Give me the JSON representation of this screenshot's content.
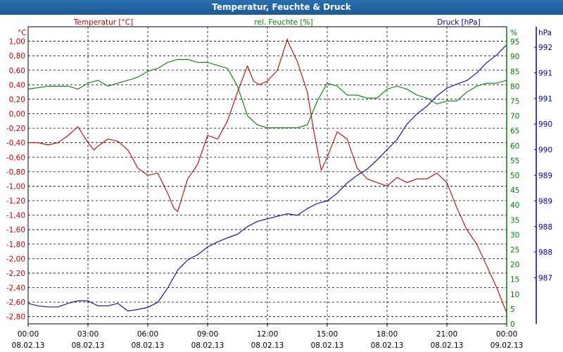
{
  "window": {
    "title": "Temperatur, Feuchte & Druck"
  },
  "colors": {
    "temp": "#c00000",
    "hum": "#008000",
    "press": "#0000a0",
    "grid": "#000000",
    "title_bg": "#1d5a96"
  },
  "chart_data": {
    "type": "line",
    "title": "Temperatur, Feuchte & Druck",
    "x": [
      "00:00",
      "03:00",
      "06:00",
      "09:00",
      "12:00",
      "15:00",
      "18:00",
      "21:00",
      "00:00"
    ],
    "x_dates": [
      "08.02.13",
      "08.02.13",
      "08.02.13",
      "08.02.13",
      "08.02.13",
      "08.02.13",
      "08.02.13",
      "08.02.13",
      "09.02.13"
    ],
    "xlim_hours": [
      0,
      24
    ],
    "axes": {
      "temp": {
        "label": "Temperatur [°C]",
        "unit": "°C",
        "ylim": [
          -2.9,
          1.2
        ],
        "ticks": [
          "1,00",
          "0,80",
          "0,60",
          "0,40",
          "0,20",
          "0,00",
          "-0,20",
          "-0,40",
          "-0,60",
          "-0,80",
          "-1,00",
          "-1,20",
          "-1,40",
          "-1,60",
          "-1,80",
          "-2,00",
          "-2,20",
          "-2,40",
          "-2,60",
          "-2,80"
        ]
      },
      "hum": {
        "label": "rel. Feuchte [%]",
        "unit": "%",
        "ylim": [
          0,
          100
        ],
        "ticks": [
          "95",
          "90",
          "85",
          "80",
          "75",
          "70",
          "65",
          "60",
          "55",
          "50",
          "45",
          "40",
          "35",
          "30",
          "25",
          "20",
          "15",
          "10",
          "5",
          "0"
        ]
      },
      "press": {
        "label": "Druck [hPa]",
        "unit": "hPa",
        "ylim": [
          986.6,
          992.4
        ],
        "ticks": [
          "992",
          "991",
          "991",
          "990",
          "990",
          "989",
          "989",
          "988",
          "988",
          "987"
        ]
      }
    },
    "series": [
      {
        "name": "Temperatur",
        "axis": "temp",
        "x": [
          0,
          0.5,
          1,
          1.5,
          2,
          2.5,
          3,
          3.3,
          3.5,
          4,
          4.5,
          5,
          5.5,
          6,
          6.5,
          7,
          7.3,
          7.5,
          8,
          8.5,
          9,
          9.5,
          10,
          10.5,
          11,
          11.3,
          11.6,
          12,
          12.5,
          13,
          13.1,
          13.5,
          14,
          14.3,
          14.7,
          15,
          15.5,
          16,
          16.5,
          17,
          17.5,
          18,
          18.5,
          19,
          19.5,
          20,
          20.5,
          21,
          21.5,
          22,
          22.5,
          23,
          23.5,
          24
        ],
        "values": [
          -0.4,
          -0.4,
          -0.43,
          -0.4,
          -0.3,
          -0.18,
          -0.4,
          -0.5,
          -0.45,
          -0.35,
          -0.38,
          -0.5,
          -0.75,
          -0.85,
          -0.82,
          -1.1,
          -1.3,
          -1.35,
          -0.9,
          -0.7,
          -0.3,
          -0.35,
          -0.1,
          0.3,
          0.66,
          0.45,
          0.4,
          0.45,
          0.6,
          1.03,
          0.95,
          0.72,
          0.3,
          -0.2,
          -0.78,
          -0.6,
          -0.25,
          -0.35,
          -0.75,
          -0.9,
          -0.95,
          -1.0,
          -0.88,
          -0.95,
          -0.9,
          -0.9,
          -0.82,
          -0.95,
          -1.3,
          -1.6,
          -1.8,
          -2.1,
          -2.4,
          -2.75
        ]
      },
      {
        "name": "rel. Feuchte",
        "axis": "hum",
        "x": [
          0,
          1,
          2,
          2.5,
          3,
          3.5,
          4,
          4.5,
          5,
          5.5,
          6,
          6.5,
          7,
          7.5,
          8,
          8.5,
          9,
          9.5,
          10,
          10.5,
          11,
          11.5,
          12,
          12.5,
          13,
          13.5,
          14,
          14.5,
          15,
          15.5,
          16,
          16.5,
          17,
          17.5,
          18,
          18.5,
          19,
          19.5,
          20,
          20.5,
          21,
          21.5,
          22,
          22.5,
          23,
          23.5,
          24
        ],
        "values": [
          79,
          80,
          80,
          79,
          81,
          82,
          80,
          81,
          82,
          83,
          85,
          86,
          88,
          89,
          89,
          88,
          88,
          87,
          86,
          80,
          70,
          67,
          66,
          66,
          66,
          66,
          67,
          75,
          81,
          80,
          77,
          77,
          76,
          76,
          79,
          80,
          79,
          77,
          76,
          74,
          75,
          75,
          78,
          80,
          81,
          81,
          82
        ]
      },
      {
        "name": "Druck",
        "axis": "press",
        "x": [
          0,
          0.5,
          1,
          1.5,
          2,
          2.5,
          3,
          3.5,
          4,
          4.5,
          5,
          5.5,
          6,
          6.5,
          7,
          7.5,
          8,
          8.5,
          9,
          9.5,
          10,
          10.5,
          11,
          11.5,
          12,
          12.5,
          13,
          13.5,
          14,
          14.5,
          15,
          15.5,
          16,
          16.5,
          17,
          17.5,
          18,
          18.5,
          19,
          19.5,
          20,
          20.5,
          21,
          21.5,
          22,
          22.5,
          23,
          23.5,
          24
        ],
        "values": [
          987.0,
          986.95,
          986.93,
          986.93,
          987.0,
          987.05,
          987.05,
          986.95,
          986.95,
          987.0,
          986.85,
          986.88,
          986.92,
          987.02,
          987.3,
          987.65,
          987.85,
          987.95,
          988.1,
          988.2,
          988.28,
          988.35,
          988.5,
          988.6,
          988.65,
          988.7,
          988.75,
          988.72,
          988.85,
          988.95,
          989.0,
          989.15,
          989.35,
          989.5,
          989.62,
          989.8,
          990.0,
          990.2,
          990.5,
          990.7,
          990.85,
          991.05,
          991.2,
          991.28,
          991.35,
          991.5,
          991.7,
          991.85,
          992.05
        ]
      }
    ]
  }
}
